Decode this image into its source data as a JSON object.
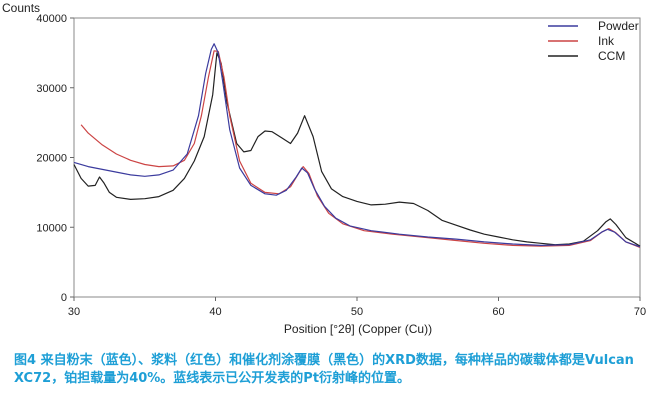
{
  "chart_data": {
    "type": "line",
    "title": "",
    "xlabel": "Position [°2θ] (Copper (Cu))",
    "ylabel": "Counts",
    "xlim": [
      30,
      70
    ],
    "ylim": [
      0,
      40000
    ],
    "x_ticks": [
      30,
      40,
      50,
      60,
      70
    ],
    "y_ticks": [
      0,
      10000,
      20000,
      30000,
      40000
    ],
    "x_tick_labels": [
      "30",
      "40",
      "50",
      "60",
      "70"
    ],
    "y_tick_labels": [
      "0",
      "10000",
      "20000",
      "30000",
      "40000"
    ],
    "grid": false,
    "legend_position": "top-right",
    "series": [
      {
        "name": "Powder",
        "color": "#3b3b9e",
        "points": [
          [
            30,
            19300
          ],
          [
            31,
            18700
          ],
          [
            32,
            18300
          ],
          [
            33,
            17900
          ],
          [
            34,
            17500
          ],
          [
            35,
            17300
          ],
          [
            36,
            17500
          ],
          [
            37,
            18200
          ],
          [
            38,
            20500
          ],
          [
            38.8,
            26000
          ],
          [
            39.3,
            32000
          ],
          [
            39.7,
            35500
          ],
          [
            39.9,
            36300
          ],
          [
            40.2,
            35000
          ],
          [
            40.5,
            31000
          ],
          [
            41,
            24000
          ],
          [
            41.7,
            18500
          ],
          [
            42.5,
            16000
          ],
          [
            43.5,
            14800
          ],
          [
            44.3,
            14600
          ],
          [
            45,
            15300
          ],
          [
            45.7,
            17200
          ],
          [
            46.1,
            18500
          ],
          [
            46.5,
            17800
          ],
          [
            47,
            15500
          ],
          [
            47.7,
            13000
          ],
          [
            48.5,
            11300
          ],
          [
            49.5,
            10200
          ],
          [
            51,
            9500
          ],
          [
            53,
            9000
          ],
          [
            55,
            8600
          ],
          [
            57,
            8300
          ],
          [
            59,
            7900
          ],
          [
            61,
            7600
          ],
          [
            63,
            7400
          ],
          [
            65,
            7500
          ],
          [
            66.5,
            8200
          ],
          [
            67.3,
            9300
          ],
          [
            67.7,
            9700
          ],
          [
            68.2,
            9300
          ],
          [
            69,
            7900
          ],
          [
            70,
            7200
          ]
        ]
      },
      {
        "name": "Ink",
        "color": "#cc4444",
        "points": [
          [
            30.5,
            24700
          ],
          [
            31,
            23500
          ],
          [
            32,
            21800
          ],
          [
            33,
            20500
          ],
          [
            34,
            19600
          ],
          [
            35,
            19000
          ],
          [
            36,
            18700
          ],
          [
            37,
            18800
          ],
          [
            37.8,
            19600
          ],
          [
            38.5,
            22000
          ],
          [
            39,
            26000
          ],
          [
            39.5,
            31500
          ],
          [
            39.9,
            35300
          ],
          [
            40.2,
            35200
          ],
          [
            40.6,
            31500
          ],
          [
            41,
            26000
          ],
          [
            41.7,
            19500
          ],
          [
            42.5,
            16300
          ],
          [
            43.5,
            15000
          ],
          [
            44.5,
            14800
          ],
          [
            45.3,
            15800
          ],
          [
            45.9,
            17800
          ],
          [
            46.2,
            18700
          ],
          [
            46.6,
            17700
          ],
          [
            47.2,
            14500
          ],
          [
            48,
            12000
          ],
          [
            49,
            10500
          ],
          [
            50.5,
            9500
          ],
          [
            52.5,
            9000
          ],
          [
            55,
            8500
          ],
          [
            57,
            8100
          ],
          [
            59,
            7700
          ],
          [
            61,
            7400
          ],
          [
            63,
            7300
          ],
          [
            65,
            7400
          ],
          [
            66.5,
            8100
          ],
          [
            67.3,
            9300
          ],
          [
            67.8,
            9800
          ],
          [
            68.3,
            9200
          ],
          [
            69,
            7900
          ],
          [
            70,
            7100
          ]
        ]
      },
      {
        "name": "CCM",
        "color": "#222222",
        "points": [
          [
            30,
            19000
          ],
          [
            30.5,
            17000
          ],
          [
            31,
            15900
          ],
          [
            31.5,
            16000
          ],
          [
            31.8,
            17200
          ],
          [
            32.1,
            16400
          ],
          [
            32.5,
            15000
          ],
          [
            33,
            14300
          ],
          [
            34,
            14000
          ],
          [
            35,
            14100
          ],
          [
            36,
            14400
          ],
          [
            37,
            15300
          ],
          [
            37.8,
            17000
          ],
          [
            38.5,
            19500
          ],
          [
            39.2,
            23000
          ],
          [
            39.8,
            29000
          ],
          [
            40.1,
            35000
          ],
          [
            40.4,
            33500
          ],
          [
            40.8,
            28000
          ],
          [
            41.5,
            22000
          ],
          [
            42,
            20800
          ],
          [
            42.5,
            21000
          ],
          [
            43,
            23000
          ],
          [
            43.5,
            23800
          ],
          [
            44,
            23700
          ],
          [
            44.7,
            22800
          ],
          [
            45.3,
            22000
          ],
          [
            45.8,
            23500
          ],
          [
            46.3,
            26000
          ],
          [
            46.9,
            23000
          ],
          [
            47.5,
            18000
          ],
          [
            48.2,
            15500
          ],
          [
            49,
            14400
          ],
          [
            50,
            13700
          ],
          [
            51,
            13200
          ],
          [
            52,
            13300
          ],
          [
            53,
            13600
          ],
          [
            54,
            13400
          ],
          [
            55,
            12400
          ],
          [
            56,
            11000
          ],
          [
            57,
            10300
          ],
          [
            58,
            9600
          ],
          [
            59,
            9000
          ],
          [
            60,
            8600
          ],
          [
            61,
            8200
          ],
          [
            62,
            7900
          ],
          [
            63,
            7700
          ],
          [
            64,
            7500
          ],
          [
            65,
            7600
          ],
          [
            66,
            8000
          ],
          [
            67,
            9500
          ],
          [
            67.6,
            10800
          ],
          [
            67.9,
            11200
          ],
          [
            68.3,
            10400
          ],
          [
            69,
            8500
          ],
          [
            70,
            7300
          ]
        ]
      }
    ]
  },
  "caption": "图4 来自粉末（蓝色）、浆料（红色）和催化剂涂覆膜（黑色）的XRD数据，每种样品的碳载体都是Vulcan XC72，铂担载量为40%。蓝线表示已公开发表的Pt衍射峰的位置。"
}
